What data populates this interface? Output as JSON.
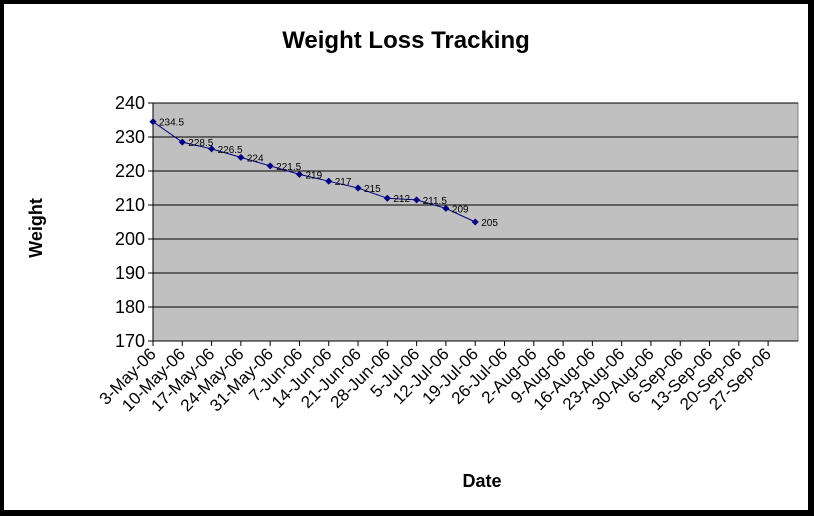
{
  "chart_data": {
    "type": "line",
    "title": "Weight Loss Tracking",
    "xlabel": "Date",
    "ylabel": "Weight",
    "ylim": [
      170,
      240
    ],
    "yticks": [
      170,
      180,
      190,
      200,
      210,
      220,
      230,
      240
    ],
    "grid": true,
    "legend": "none",
    "background_color": "#c0c0c0",
    "series_color": "#000080",
    "categories": [
      "3-May-06",
      "10-May-06",
      "17-May-06",
      "24-May-06",
      "31-May-06",
      "7-Jun-06",
      "14-Jun-06",
      "21-Jun-06",
      "28-Jun-06",
      "5-Jul-06",
      "12-Jul-06",
      "19-Jul-06",
      "26-Jul-06",
      "2-Aug-06",
      "9-Aug-06",
      "16-Aug-06",
      "23-Aug-06",
      "30-Aug-06",
      "6-Sep-06",
      "13-Sep-06",
      "20-Sep-06",
      "27-Sep-06"
    ],
    "series": [
      {
        "x": [
          "3-May-06",
          "10-May-06",
          "17-May-06",
          "24-May-06",
          "31-May-06",
          "7-Jun-06",
          "14-Jun-06",
          "21-Jun-06",
          "28-Jun-06",
          "5-Jul-06",
          "12-Jul-06",
          "19-Jul-06"
        ],
        "values": [
          234.5,
          228.5,
          226.5,
          224,
          221.5,
          219,
          217,
          215,
          212,
          211.5,
          209,
          205
        ],
        "labels": [
          "234.5",
          "228.5",
          "226.5",
          "224",
          "221.5",
          "219",
          "217",
          "215",
          "212",
          "211.5",
          "209",
          "205"
        ]
      }
    ]
  }
}
